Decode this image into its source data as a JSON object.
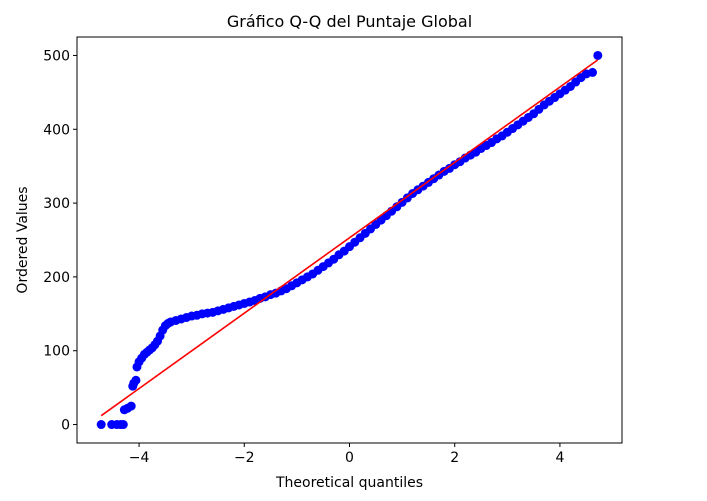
{
  "chart_data": {
    "type": "scatter",
    "title": "Gráfico Q-Q del Puntaje Global",
    "xlabel": "Theoretical quantiles",
    "ylabel": "Ordered Values",
    "xlim": [
      -5.18,
      5.18
    ],
    "ylim": [
      -25,
      525
    ],
    "x_ticks": [
      {
        "value": -4,
        "label": "−4"
      },
      {
        "value": -2,
        "label": "−2"
      },
      {
        "value": 0,
        "label": "0"
      },
      {
        "value": 2,
        "label": "2"
      },
      {
        "value": 4,
        "label": "4"
      }
    ],
    "y_ticks": [
      {
        "value": 0,
        "label": "0"
      },
      {
        "value": 100,
        "label": "100"
      },
      {
        "value": 200,
        "label": "200"
      },
      {
        "value": 300,
        "label": "300"
      },
      {
        "value": 400,
        "label": "400"
      },
      {
        "value": 500,
        "label": "500"
      }
    ],
    "grid": false,
    "legend": "none",
    "series": [
      {
        "kind": "points",
        "color": "#0000ff",
        "points": [
          [
            -4.72,
            0
          ],
          [
            -4.52,
            0
          ],
          [
            -4.42,
            0
          ],
          [
            -4.35,
            0
          ],
          [
            -4.3,
            0
          ],
          [
            -4.28,
            20
          ],
          [
            -4.22,
            22
          ],
          [
            -4.15,
            25
          ],
          [
            -4.12,
            52
          ],
          [
            -4.1,
            56
          ],
          [
            -4.06,
            60
          ],
          [
            -4.04,
            78
          ],
          [
            -4.0,
            85
          ],
          [
            -3.95,
            90
          ],
          [
            -3.9,
            95
          ],
          [
            -3.85,
            98
          ],
          [
            -3.8,
            101
          ],
          [
            -3.75,
            104
          ],
          [
            -3.7,
            108
          ],
          [
            -3.65,
            113
          ],
          [
            -3.6,
            120
          ],
          [
            -3.55,
            128
          ],
          [
            -3.5,
            134
          ],
          [
            -3.45,
            137
          ],
          [
            -3.4,
            139
          ],
          [
            -3.3,
            141
          ],
          [
            -3.2,
            143
          ],
          [
            -3.1,
            145
          ],
          [
            -3.0,
            147
          ],
          [
            -2.9,
            148
          ],
          [
            -2.8,
            150
          ],
          [
            -2.7,
            151
          ],
          [
            -2.6,
            152
          ],
          [
            -2.5,
            154
          ],
          [
            -2.4,
            156
          ],
          [
            -2.3,
            158
          ],
          [
            -2.2,
            160
          ],
          [
            -2.1,
            162
          ],
          [
            -2.0,
            164
          ],
          [
            -1.9,
            166
          ],
          [
            -1.8,
            168
          ],
          [
            -1.7,
            171
          ],
          [
            -1.6,
            173
          ],
          [
            -1.5,
            176
          ],
          [
            -1.4,
            178
          ],
          [
            -1.3,
            181
          ],
          [
            -1.2,
            184
          ],
          [
            -1.1,
            188
          ],
          [
            -1.0,
            192
          ],
          [
            -0.9,
            196
          ],
          [
            -0.8,
            200
          ],
          [
            -0.7,
            204
          ],
          [
            -0.6,
            209
          ],
          [
            -0.5,
            214
          ],
          [
            -0.4,
            219
          ],
          [
            -0.3,
            224
          ],
          [
            -0.2,
            230
          ],
          [
            -0.1,
            235
          ],
          [
            0.0,
            241
          ],
          [
            0.1,
            247
          ],
          [
            0.2,
            253
          ],
          [
            0.3,
            259
          ],
          [
            0.4,
            265
          ],
          [
            0.5,
            271
          ],
          [
            0.6,
            277
          ],
          [
            0.7,
            283
          ],
          [
            0.8,
            289
          ],
          [
            0.9,
            295
          ],
          [
            1.0,
            301
          ],
          [
            1.1,
            307
          ],
          [
            1.2,
            313
          ],
          [
            1.3,
            318
          ],
          [
            1.4,
            323
          ],
          [
            1.5,
            328
          ],
          [
            1.6,
            333
          ],
          [
            1.7,
            338
          ],
          [
            1.8,
            343
          ],
          [
            1.9,
            347
          ],
          [
            2.0,
            352
          ],
          [
            2.1,
            356
          ],
          [
            2.2,
            361
          ],
          [
            2.3,
            365
          ],
          [
            2.4,
            369
          ],
          [
            2.5,
            374
          ],
          [
            2.6,
            378
          ],
          [
            2.7,
            382
          ],
          [
            2.8,
            387
          ],
          [
            2.9,
            391
          ],
          [
            3.0,
            396
          ],
          [
            3.1,
            401
          ],
          [
            3.2,
            406
          ],
          [
            3.3,
            411
          ],
          [
            3.4,
            416
          ],
          [
            3.5,
            421
          ],
          [
            3.6,
            427
          ],
          [
            3.7,
            433
          ],
          [
            3.8,
            438
          ],
          [
            3.9,
            443
          ],
          [
            4.0,
            448
          ],
          [
            4.1,
            453
          ],
          [
            4.2,
            458
          ],
          [
            4.3,
            464
          ],
          [
            4.4,
            470
          ],
          [
            4.5,
            475
          ],
          [
            4.62,
            477
          ],
          [
            4.72,
            500
          ]
        ]
      },
      {
        "kind": "line",
        "color": "#ff0000",
        "points": [
          [
            -4.72,
            12
          ],
          [
            4.72,
            494
          ]
        ]
      }
    ]
  }
}
